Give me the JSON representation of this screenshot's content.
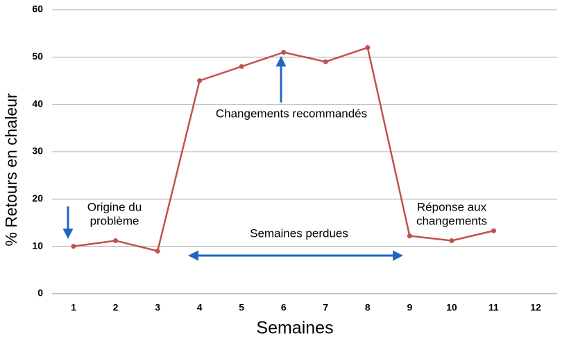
{
  "chart_data": {
    "type": "line",
    "x_label": "Semaines",
    "y_label": "% Retours en chaleur",
    "categories": [
      "1",
      "2",
      "3",
      "4",
      "5",
      "6",
      "7",
      "8",
      "9",
      "10",
      "11",
      "12"
    ],
    "series": [
      {
        "name": "% Retours en chaleur",
        "color": "#c0504d",
        "values": [
          10,
          11.2,
          9,
          45,
          48,
          51,
          49,
          52,
          12.2,
          11.2,
          13.3,
          null
        ]
      }
    ],
    "ylim": [
      0,
      60
    ],
    "yticks": [
      0,
      10,
      20,
      30,
      40,
      50,
      60
    ],
    "grid": true,
    "annotations": [
      {
        "lines": [
          "Origine du",
          "problème"
        ]
      },
      {
        "lines": [
          "Changements recommandés"
        ]
      },
      {
        "lines": [
          "Semaines perdues"
        ]
      },
      {
        "lines": [
          "Réponse aux",
          "changements"
        ]
      }
    ]
  }
}
